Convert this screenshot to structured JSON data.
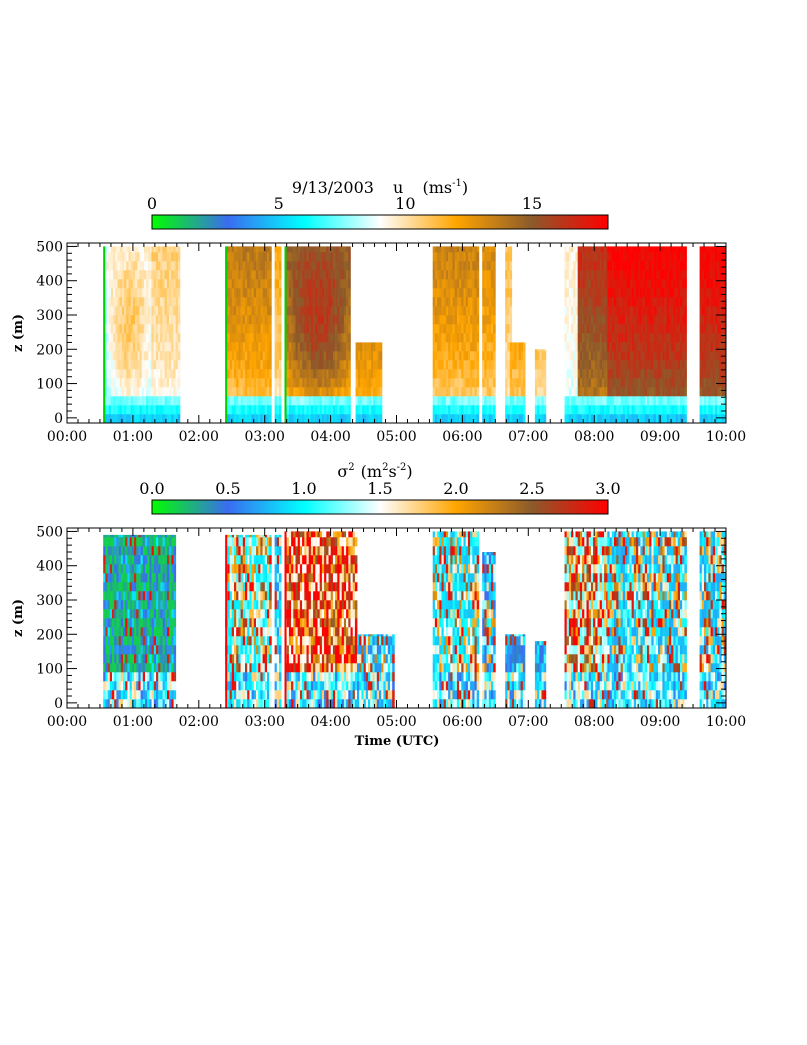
{
  "chart_data": [
    {
      "type": "heatmap",
      "date": "9/13/2003",
      "variable": "u",
      "units": "(ms",
      "units_exp": "-1",
      "units_tail": ")",
      "ylabel": "z (m)",
      "xlabel": "",
      "xlim": [
        0,
        10
      ],
      "ylim": [
        -15,
        510
      ],
      "x_ticks": [
        "00:00",
        "01:00",
        "02:00",
        "03:00",
        "04:00",
        "05:00",
        "06:00",
        "07:00",
        "08:00",
        "09:00",
        "10:00"
      ],
      "y_ticks": [
        0,
        100,
        200,
        300,
        400,
        500
      ],
      "colorbar": {
        "range": [
          0,
          18
        ],
        "ticks": [
          "0",
          "5",
          "10",
          "15"
        ],
        "tick_values": [
          0,
          5,
          10,
          15
        ]
      },
      "colormap": [
        "#00ff00",
        "#3a6cf0",
        "#00ffff",
        "#ffffff",
        "#ffa500",
        "#8b5a2b",
        "#ff0000"
      ],
      "segments": [
        {
          "start": 0.55,
          "end": 0.6,
          "top": 500,
          "v_bottom": 5,
          "v_top": 8,
          "edge": 1
        },
        {
          "start": 0.6,
          "end": 1.28,
          "top": 500,
          "v_bottom": 7.5,
          "v_top": 9.3,
          "bulge": 1.9
        },
        {
          "start": 1.28,
          "end": 1.7,
          "top": 500,
          "v_bottom": 8.0,
          "v_top": 10.6
        },
        {
          "start": 2.4,
          "end": 3.1,
          "top": 500,
          "v_bottom": 8.5,
          "v_top": 13.8,
          "edge": 1
        },
        {
          "start": 3.15,
          "end": 3.22,
          "top": 500,
          "v_bottom": 8.0,
          "v_top": 12.0
        },
        {
          "start": 3.3,
          "end": 4.3,
          "top": 500,
          "v_bottom": 8.5,
          "v_top": 15.0,
          "bulge": 2.4,
          "edge": 1
        },
        {
          "start": 4.38,
          "end": 4.75,
          "top": 220,
          "v_bottom": 9.0,
          "v_top": 13.0
        },
        {
          "start": 5.55,
          "end": 6.25,
          "top": 500,
          "v_bottom": 8.0,
          "v_top": 13.5
        },
        {
          "start": 6.3,
          "end": 6.5,
          "top": 500,
          "v_bottom": 8.5,
          "v_top": 13.0
        },
        {
          "start": 6.65,
          "end": 6.72,
          "top": 500,
          "v_bottom": 9.0,
          "v_top": 11.0
        },
        {
          "start": 6.72,
          "end": 6.95,
          "top": 220,
          "v_bottom": 8.5,
          "v_top": 12.0
        },
        {
          "start": 7.1,
          "end": 7.25,
          "top": 200,
          "v_bottom": 8.5,
          "v_top": 11.0
        },
        {
          "start": 7.55,
          "end": 7.75,
          "top": 500,
          "v_bottom": 8.0,
          "v_top": 9.5
        },
        {
          "start": 7.75,
          "end": 8.2,
          "top": 500,
          "v_bottom": 11.0,
          "v_top": 16.5
        },
        {
          "start": 8.2,
          "end": 9.4,
          "top": 500,
          "v_bottom": 12.0,
          "v_top": 18.0
        },
        {
          "start": 9.6,
          "end": 10.0,
          "top": 500,
          "v_bottom": 12.0,
          "v_top": 18.0
        }
      ]
    },
    {
      "type": "heatmap",
      "variable": "σ",
      "variable_exp": "2",
      "units": "(m",
      "units_exp1": "2",
      "units_mid": "s",
      "units_exp2": "-2",
      "units_tail": ")",
      "ylabel": "z (m)",
      "xlabel": "Time (UTC)",
      "xlim": [
        0,
        10
      ],
      "ylim": [
        -15,
        510
      ],
      "x_ticks": [
        "00:00",
        "01:00",
        "02:00",
        "03:00",
        "04:00",
        "05:00",
        "06:00",
        "07:00",
        "08:00",
        "09:00",
        "10:00"
      ],
      "y_ticks": [
        0,
        100,
        200,
        300,
        400,
        500
      ],
      "colorbar": {
        "range": [
          0,
          3
        ],
        "ticks": [
          "0.0",
          "0.5",
          "1.0",
          "1.5",
          "2.0",
          "2.5",
          "3.0"
        ],
        "tick_values": [
          0,
          0.5,
          1.0,
          1.5,
          2.0,
          2.5,
          3.0
        ]
      },
      "colormap": [
        "#00ff00",
        "#3a6cf0",
        "#00ffff",
        "#ffffff",
        "#ffa500",
        "#8b5a2b",
        "#ff0000"
      ],
      "segments": [
        {
          "start": 0.55,
          "end": 1.65,
          "top": 490,
          "mean": 0.15,
          "spread": 0.45
        },
        {
          "start": 2.4,
          "end": 3.1,
          "top": 490,
          "mean": 0.9,
          "spread": 1.4,
          "edge": 1
        },
        {
          "start": 3.15,
          "end": 3.25,
          "top": 490,
          "mean": 0.6,
          "spread": 1.0
        },
        {
          "start": 3.3,
          "end": 4.4,
          "top": 500,
          "mean": 1.5,
          "spread": 1.7,
          "edge": 1
        },
        {
          "start": 4.4,
          "end": 4.95,
          "top": 200,
          "mean": 0.6,
          "spread": 1.0
        },
        {
          "start": 5.55,
          "end": 6.25,
          "top": 500,
          "mean": 0.8,
          "spread": 1.3
        },
        {
          "start": 6.3,
          "end": 6.5,
          "top": 440,
          "mean": 0.5,
          "spread": 1.0
        },
        {
          "start": 6.65,
          "end": 6.95,
          "top": 200,
          "mean": 0.4,
          "spread": 0.8
        },
        {
          "start": 7.1,
          "end": 7.25,
          "top": 180,
          "mean": 0.3,
          "spread": 0.6
        },
        {
          "start": 7.55,
          "end": 8.2,
          "top": 500,
          "mean": 1.2,
          "spread": 1.6
        },
        {
          "start": 8.2,
          "end": 9.4,
          "top": 500,
          "mean": 0.7,
          "spread": 1.3
        },
        {
          "start": 9.6,
          "end": 10.0,
          "top": 500,
          "mean": 0.7,
          "spread": 1.3
        }
      ]
    }
  ]
}
